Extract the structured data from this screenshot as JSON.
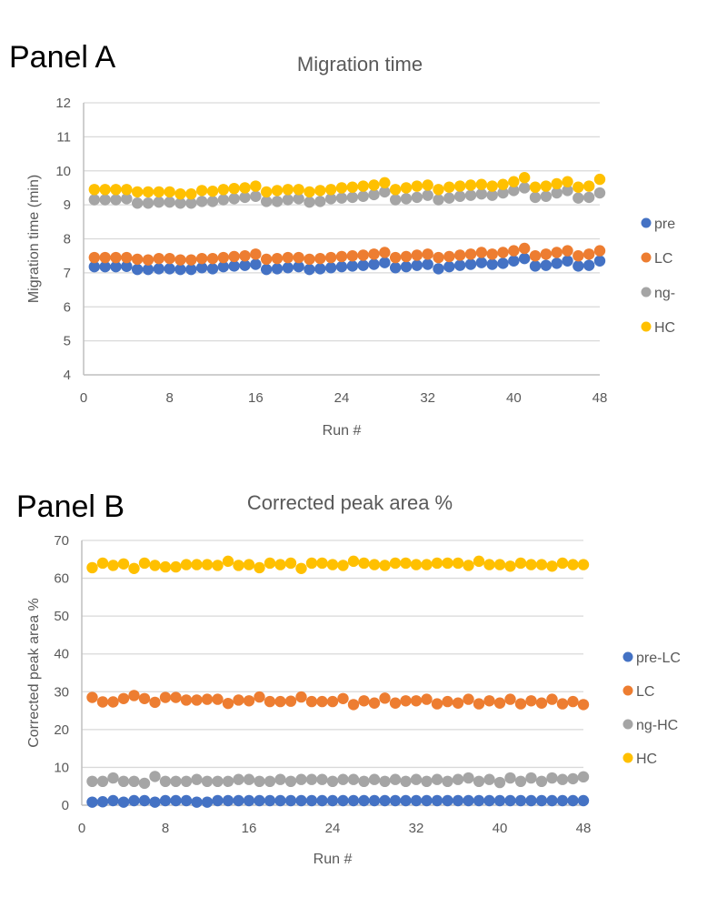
{
  "panels": [
    {
      "label": "Panel A"
    },
    {
      "label": "Panel B"
    }
  ],
  "chart_data": [
    {
      "type": "scatter",
      "title": "Migration time",
      "xlabel": "Run #",
      "ylabel": "Migration time (min)",
      "xlim": [
        0,
        48
      ],
      "ylim": [
        4,
        12
      ],
      "xticks": [
        "0",
        "8",
        "16",
        "24",
        "32",
        "40",
        "48"
      ],
      "yticks": [
        "4",
        "5",
        "6",
        "7",
        "8",
        "9",
        "10",
        "11",
        "12"
      ],
      "grid": true,
      "legend_position": "right",
      "x": [
        1,
        2,
        3,
        4,
        5,
        6,
        7,
        8,
        9,
        10,
        11,
        12,
        13,
        14,
        15,
        16,
        17,
        18,
        19,
        20,
        21,
        22,
        23,
        24,
        25,
        26,
        27,
        28,
        29,
        30,
        31,
        32,
        33,
        34,
        35,
        36,
        37,
        38,
        39,
        40,
        41,
        42,
        43,
        44,
        45,
        46,
        47,
        48
      ],
      "series": [
        {
          "name": "pre",
          "color": "#4472C4",
          "values": [
            7.18,
            7.18,
            7.18,
            7.19,
            7.1,
            7.1,
            7.12,
            7.12,
            7.1,
            7.1,
            7.15,
            7.12,
            7.18,
            7.2,
            7.22,
            7.25,
            7.1,
            7.12,
            7.15,
            7.18,
            7.1,
            7.12,
            7.15,
            7.18,
            7.2,
            7.22,
            7.25,
            7.3,
            7.15,
            7.18,
            7.22,
            7.25,
            7.12,
            7.18,
            7.22,
            7.25,
            7.3,
            7.25,
            7.28,
            7.35,
            7.42,
            7.2,
            7.22,
            7.28,
            7.35,
            7.2,
            7.22,
            7.35
          ]
        },
        {
          "name": "LC",
          "color": "#ED7D31",
          "values": [
            7.45,
            7.45,
            7.45,
            7.45,
            7.4,
            7.38,
            7.42,
            7.42,
            7.38,
            7.38,
            7.42,
            7.42,
            7.45,
            7.48,
            7.5,
            7.55,
            7.4,
            7.42,
            7.45,
            7.45,
            7.4,
            7.42,
            7.45,
            7.48,
            7.5,
            7.52,
            7.55,
            7.6,
            7.45,
            7.48,
            7.52,
            7.55,
            7.45,
            7.48,
            7.52,
            7.55,
            7.6,
            7.55,
            7.6,
            7.65,
            7.72,
            7.5,
            7.55,
            7.6,
            7.65,
            7.5,
            7.55,
            7.65
          ]
        },
        {
          "name": "ng-",
          "color": "#A5A5A5",
          "values": [
            9.15,
            9.15,
            9.15,
            9.18,
            9.05,
            9.05,
            9.08,
            9.08,
            9.05,
            9.05,
            9.1,
            9.1,
            9.15,
            9.18,
            9.22,
            9.25,
            9.1,
            9.1,
            9.15,
            9.18,
            9.08,
            9.1,
            9.18,
            9.2,
            9.22,
            9.25,
            9.3,
            9.38,
            9.15,
            9.18,
            9.22,
            9.28,
            9.15,
            9.2,
            9.25,
            9.28,
            9.32,
            9.28,
            9.35,
            9.42,
            9.5,
            9.22,
            9.25,
            9.35,
            9.42,
            9.2,
            9.22,
            9.35
          ]
        },
        {
          "name": "HC",
          "color": "#FFC000",
          "values": [
            9.45,
            9.45,
            9.45,
            9.45,
            9.38,
            9.38,
            9.38,
            9.38,
            9.32,
            9.32,
            9.42,
            9.4,
            9.45,
            9.48,
            9.5,
            9.55,
            9.38,
            9.42,
            9.45,
            9.45,
            9.38,
            9.42,
            9.45,
            9.5,
            9.52,
            9.55,
            9.58,
            9.65,
            9.45,
            9.5,
            9.55,
            9.58,
            9.45,
            9.52,
            9.55,
            9.58,
            9.6,
            9.55,
            9.6,
            9.68,
            9.8,
            9.52,
            9.55,
            9.62,
            9.68,
            9.52,
            9.55,
            9.75
          ]
        }
      ]
    },
    {
      "type": "scatter",
      "title": "Corrected peak area %",
      "xlabel": "Run #",
      "ylabel": "Corrected peak area %",
      "xlim": [
        0,
        48
      ],
      "ylim": [
        0,
        70
      ],
      "xticks": [
        "0",
        "8",
        "16",
        "24",
        "32",
        "40",
        "48"
      ],
      "yticks": [
        "0",
        "10",
        "20",
        "30",
        "40",
        "50",
        "60",
        "70"
      ],
      "grid": true,
      "legend_position": "right",
      "x": [
        1,
        2,
        3,
        4,
        5,
        6,
        7,
        8,
        9,
        10,
        11,
        12,
        13,
        14,
        15,
        16,
        17,
        18,
        19,
        20,
        21,
        22,
        23,
        24,
        25,
        26,
        27,
        28,
        29,
        30,
        31,
        32,
        33,
        34,
        35,
        36,
        37,
        38,
        39,
        40,
        41,
        42,
        43,
        44,
        45,
        46,
        47,
        48
      ],
      "series": [
        {
          "name": "pre-LC",
          "color": "#4472C4",
          "values": [
            0.8,
            0.9,
            1.2,
            0.8,
            1.2,
            1.2,
            0.8,
            1.2,
            1.2,
            1.2,
            0.8,
            0.8,
            1.2,
            1.2,
            1.2,
            1.2,
            1.2,
            1.2,
            1.2,
            1.2,
            1.2,
            1.2,
            1.2,
            1.2,
            1.2,
            1.2,
            1.2,
            1.2,
            1.2,
            1.2,
            1.2,
            1.2,
            1.2,
            1.2,
            1.2,
            1.2,
            1.2,
            1.2,
            1.2,
            1.2,
            1.2,
            1.2,
            1.2,
            1.2,
            1.2,
            1.2,
            1.2,
            1.2
          ]
        },
        {
          "name": "LC",
          "color": "#ED7D31",
          "values": [
            28.5,
            27.3,
            27.3,
            28.2,
            29.0,
            28.2,
            27.2,
            28.5,
            28.5,
            27.8,
            27.8,
            28.0,
            28.0,
            26.9,
            27.8,
            27.6,
            28.6,
            27.4,
            27.4,
            27.5,
            28.6,
            27.4,
            27.4,
            27.4,
            28.2,
            26.6,
            27.6,
            27.0,
            28.3,
            27.0,
            27.6,
            27.6,
            28.0,
            26.8,
            27.4,
            27.0,
            28.0,
            26.8,
            27.6,
            27.0,
            28.0,
            26.8,
            27.6,
            27.0,
            28.0,
            26.8,
            27.4,
            26.6
          ]
        },
        {
          "name": "ng-HC",
          "color": "#A5A5A5",
          "values": [
            6.3,
            6.3,
            7.2,
            6.3,
            6.3,
            5.8,
            7.6,
            6.3,
            6.3,
            6.3,
            6.8,
            6.3,
            6.3,
            6.3,
            6.8,
            6.8,
            6.3,
            6.3,
            6.8,
            6.3,
            6.8,
            6.8,
            6.8,
            6.3,
            6.8,
            6.8,
            6.3,
            6.8,
            6.3,
            6.8,
            6.3,
            6.8,
            6.3,
            6.8,
            6.3,
            6.8,
            7.2,
            6.3,
            6.8,
            6.0,
            7.2,
            6.3,
            7.2,
            6.3,
            7.2,
            6.8,
            7.0,
            7.5
          ]
        },
        {
          "name": "HC",
          "color": "#FFC000",
          "values": [
            62.8,
            64.0,
            63.4,
            63.8,
            62.6,
            64.0,
            63.4,
            63.0,
            63.0,
            63.6,
            63.6,
            63.6,
            63.4,
            64.5,
            63.4,
            63.6,
            62.8,
            64.0,
            63.6,
            64.0,
            62.6,
            64.0,
            64.0,
            63.6,
            63.4,
            64.5,
            64.0,
            63.6,
            63.4,
            64.0,
            64.0,
            63.6,
            63.6,
            64.0,
            64.0,
            64.0,
            63.4,
            64.5,
            63.6,
            63.6,
            63.2,
            64.0,
            63.6,
            63.6,
            63.2,
            64.0,
            63.6,
            63.6
          ]
        }
      ]
    }
  ]
}
